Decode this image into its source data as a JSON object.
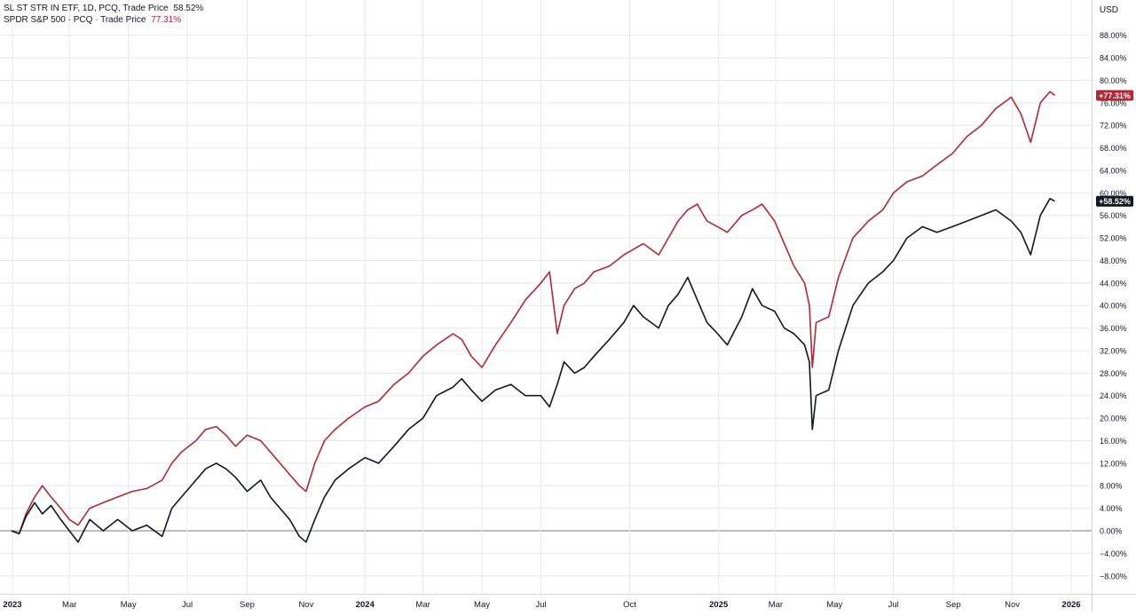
{
  "legend": {
    "series1_name": "SL ST STR IN ETF, 1D, PCQ, Trade Price",
    "series1_value": "58.52%",
    "series2_name": "SPDR S&P 500 · PCQ · Trade Price",
    "series2_value": "77.31%"
  },
  "currency_label": "USD",
  "colors": {
    "series1": "#131722",
    "series2": "#b22833",
    "grid": "#e6e8ec",
    "zero_line": "#9598a1",
    "axis_text": "#131722"
  },
  "chart_data": {
    "type": "line",
    "y_unit": "%",
    "ylim": [
      -10,
      92
    ],
    "grid": true,
    "y_ticks": [
      "88.00%",
      "84.00%",
      "80.00%",
      "76.00%",
      "72.00%",
      "68.00%",
      "64.00%",
      "60.00%",
      "56.00%",
      "52.00%",
      "48.00%",
      "44.00%",
      "40.00%",
      "36.00%",
      "32.00%",
      "28.00%",
      "24.00%",
      "20.00%",
      "16.00%",
      "12.00%",
      "8.00%",
      "4.00%",
      "0.00%",
      "−4.00%",
      "−8.00%"
    ],
    "y_tick_values": [
      88,
      84,
      80,
      76,
      72,
      68,
      64,
      60,
      56,
      52,
      48,
      44,
      40,
      36,
      32,
      28,
      24,
      20,
      16,
      12,
      8,
      4,
      0,
      -4,
      -8
    ],
    "x_ticks": [
      {
        "label": "2023",
        "date": "2023-01-01",
        "bold": true
      },
      {
        "label": "Mar",
        "date": "2023-03-01"
      },
      {
        "label": "May",
        "date": "2023-05-01"
      },
      {
        "label": "Jul",
        "date": "2023-07-01"
      },
      {
        "label": "Sep",
        "date": "2023-09-01"
      },
      {
        "label": "Nov",
        "date": "2023-11-01"
      },
      {
        "label": "2024",
        "date": "2024-01-01",
        "bold": true
      },
      {
        "label": "Mar",
        "date": "2024-03-01"
      },
      {
        "label": "May",
        "date": "2024-05-01"
      },
      {
        "label": "Jul",
        "date": "2024-07-01"
      },
      {
        "label": "Oct",
        "date": "2024-10-01"
      },
      {
        "label": "2025",
        "date": "2025-01-01",
        "bold": true
      },
      {
        "label": "Mar",
        "date": "2025-03-01"
      },
      {
        "label": "May",
        "date": "2025-05-01"
      },
      {
        "label": "Jul",
        "date": "2025-07-01"
      },
      {
        "label": "Sep",
        "date": "2025-09-01"
      },
      {
        "label": "Nov",
        "date": "2025-11-01"
      },
      {
        "label": "2026",
        "date": "2026-01-01",
        "bold": true
      }
    ],
    "series": [
      {
        "name": "SL ST STR IN ETF, 1D, PCQ, Trade Price",
        "last_label": "+58.52%",
        "points": [
          [
            "2022-12-31",
            0
          ],
          [
            "2023-01-08",
            -0.5
          ],
          [
            "2023-01-15",
            2.5
          ],
          [
            "2023-01-24",
            5
          ],
          [
            "2023-02-01",
            3
          ],
          [
            "2023-02-10",
            4.5
          ],
          [
            "2023-02-20",
            2
          ],
          [
            "2023-03-01",
            0
          ],
          [
            "2023-03-10",
            -2
          ],
          [
            "2023-03-22",
            2
          ],
          [
            "2023-04-05",
            0
          ],
          [
            "2023-04-20",
            2
          ],
          [
            "2023-05-05",
            0
          ],
          [
            "2023-05-20",
            1
          ],
          [
            "2023-06-05",
            -1
          ],
          [
            "2023-06-15",
            4
          ],
          [
            "2023-06-25",
            6
          ],
          [
            "2023-07-10",
            9
          ],
          [
            "2023-07-20",
            11
          ],
          [
            "2023-07-31",
            12
          ],
          [
            "2023-08-10",
            11
          ],
          [
            "2023-08-20",
            9.5
          ],
          [
            "2023-09-01",
            7
          ],
          [
            "2023-09-15",
            9
          ],
          [
            "2023-09-25",
            6
          ],
          [
            "2023-10-05",
            4
          ],
          [
            "2023-10-15",
            2
          ],
          [
            "2023-10-25",
            -1
          ],
          [
            "2023-11-01",
            -2
          ],
          [
            "2023-11-10",
            2
          ],
          [
            "2023-11-20",
            6
          ],
          [
            "2023-12-01",
            9
          ],
          [
            "2023-12-15",
            11
          ],
          [
            "2024-01-01",
            13
          ],
          [
            "2024-01-15",
            12
          ],
          [
            "2024-01-31",
            15
          ],
          [
            "2024-02-15",
            18
          ],
          [
            "2024-03-01",
            20
          ],
          [
            "2024-03-15",
            24
          ],
          [
            "2024-04-01",
            25.5
          ],
          [
            "2024-04-10",
            27
          ],
          [
            "2024-04-20",
            25
          ],
          [
            "2024-05-01",
            23
          ],
          [
            "2024-05-15",
            25
          ],
          [
            "2024-05-31",
            26
          ],
          [
            "2024-06-15",
            24
          ],
          [
            "2024-07-01",
            24
          ],
          [
            "2024-07-10",
            22
          ],
          [
            "2024-07-18",
            26
          ],
          [
            "2024-07-25",
            30
          ],
          [
            "2024-08-05",
            28
          ],
          [
            "2024-08-15",
            29
          ],
          [
            "2024-08-25",
            31
          ],
          [
            "2024-09-10",
            34
          ],
          [
            "2024-09-25",
            37
          ],
          [
            "2024-10-05",
            40
          ],
          [
            "2024-10-15",
            38
          ],
          [
            "2024-10-31",
            36
          ],
          [
            "2024-11-10",
            40
          ],
          [
            "2024-11-20",
            42
          ],
          [
            "2024-11-30",
            45
          ],
          [
            "2024-12-10",
            41
          ],
          [
            "2024-12-20",
            37
          ],
          [
            "2024-12-31",
            35
          ],
          [
            "2025-01-10",
            33
          ],
          [
            "2025-01-25",
            38
          ],
          [
            "2025-02-05",
            43
          ],
          [
            "2025-02-15",
            40
          ],
          [
            "2025-02-28",
            39
          ],
          [
            "2025-03-10",
            36
          ],
          [
            "2025-03-20",
            35
          ],
          [
            "2025-03-31",
            33
          ],
          [
            "2025-04-05",
            30
          ],
          [
            "2025-04-08",
            18
          ],
          [
            "2025-04-12",
            24
          ],
          [
            "2025-04-25",
            25
          ],
          [
            "2025-05-05",
            32
          ],
          [
            "2025-05-20",
            40
          ],
          [
            "2025-06-05",
            44
          ],
          [
            "2025-06-20",
            46
          ],
          [
            "2025-07-01",
            48
          ],
          [
            "2025-07-15",
            52
          ],
          [
            "2025-07-31",
            54
          ],
          [
            "2025-08-15",
            53
          ],
          [
            "2025-08-31",
            54
          ],
          [
            "2025-09-15",
            55
          ],
          [
            "2025-09-30",
            56
          ],
          [
            "2025-10-15",
            57
          ],
          [
            "2025-10-31",
            55
          ],
          [
            "2025-11-10",
            53
          ],
          [
            "2025-11-20",
            49
          ],
          [
            "2025-11-30",
            56
          ],
          [
            "2025-12-10",
            59
          ],
          [
            "2025-12-15",
            58.52
          ]
        ]
      },
      {
        "name": "SPDR S&P 500 · PCQ · Trade Price",
        "last_label": "+77.31%",
        "points": [
          [
            "2022-12-31",
            0
          ],
          [
            "2023-01-08",
            -0.5
          ],
          [
            "2023-01-15",
            3
          ],
          [
            "2023-01-24",
            6
          ],
          [
            "2023-02-01",
            8
          ],
          [
            "2023-02-10",
            6
          ],
          [
            "2023-02-20",
            4
          ],
          [
            "2023-03-01",
            2
          ],
          [
            "2023-03-10",
            1
          ],
          [
            "2023-03-22",
            4
          ],
          [
            "2023-04-05",
            5
          ],
          [
            "2023-04-20",
            6
          ],
          [
            "2023-05-05",
            7
          ],
          [
            "2023-05-20",
            7.5
          ],
          [
            "2023-06-05",
            9
          ],
          [
            "2023-06-15",
            12
          ],
          [
            "2023-06-25",
            14
          ],
          [
            "2023-07-10",
            16
          ],
          [
            "2023-07-20",
            18
          ],
          [
            "2023-07-31",
            18.5
          ],
          [
            "2023-08-10",
            17
          ],
          [
            "2023-08-20",
            15
          ],
          [
            "2023-09-01",
            17
          ],
          [
            "2023-09-15",
            16
          ],
          [
            "2023-09-25",
            14
          ],
          [
            "2023-10-05",
            12
          ],
          [
            "2023-10-15",
            10
          ],
          [
            "2023-10-25",
            8
          ],
          [
            "2023-11-01",
            7
          ],
          [
            "2023-11-10",
            12
          ],
          [
            "2023-11-20",
            16
          ],
          [
            "2023-12-01",
            18
          ],
          [
            "2023-12-15",
            20
          ],
          [
            "2024-01-01",
            22
          ],
          [
            "2024-01-15",
            23
          ],
          [
            "2024-01-31",
            26
          ],
          [
            "2024-02-15",
            28
          ],
          [
            "2024-03-01",
            31
          ],
          [
            "2024-03-15",
            33
          ],
          [
            "2024-04-01",
            35
          ],
          [
            "2024-04-10",
            34
          ],
          [
            "2024-04-20",
            31
          ],
          [
            "2024-05-01",
            29
          ],
          [
            "2024-05-15",
            33
          ],
          [
            "2024-05-31",
            37
          ],
          [
            "2024-06-15",
            41
          ],
          [
            "2024-07-01",
            44
          ],
          [
            "2024-07-10",
            46
          ],
          [
            "2024-07-18",
            35
          ],
          [
            "2024-07-25",
            40
          ],
          [
            "2024-08-05",
            43
          ],
          [
            "2024-08-15",
            44
          ],
          [
            "2024-08-25",
            46
          ],
          [
            "2024-09-10",
            47
          ],
          [
            "2024-09-25",
            49
          ],
          [
            "2024-10-05",
            50
          ],
          [
            "2024-10-15",
            51
          ],
          [
            "2024-10-31",
            49
          ],
          [
            "2024-11-10",
            52
          ],
          [
            "2024-11-20",
            55
          ],
          [
            "2024-11-30",
            57
          ],
          [
            "2024-12-10",
            58
          ],
          [
            "2024-12-20",
            55
          ],
          [
            "2024-12-31",
            54
          ],
          [
            "2025-01-10",
            53
          ],
          [
            "2025-01-25",
            56
          ],
          [
            "2025-02-05",
            57
          ],
          [
            "2025-02-15",
            58
          ],
          [
            "2025-02-28",
            55
          ],
          [
            "2025-03-10",
            51
          ],
          [
            "2025-03-20",
            47
          ],
          [
            "2025-03-31",
            44
          ],
          [
            "2025-04-05",
            40
          ],
          [
            "2025-04-08",
            29
          ],
          [
            "2025-04-12",
            37
          ],
          [
            "2025-04-25",
            38
          ],
          [
            "2025-05-05",
            45
          ],
          [
            "2025-05-20",
            52
          ],
          [
            "2025-06-05",
            55
          ],
          [
            "2025-06-20",
            57
          ],
          [
            "2025-07-01",
            60
          ],
          [
            "2025-07-15",
            62
          ],
          [
            "2025-07-31",
            63
          ],
          [
            "2025-08-15",
            65
          ],
          [
            "2025-08-31",
            67
          ],
          [
            "2025-09-15",
            70
          ],
          [
            "2025-09-30",
            72
          ],
          [
            "2025-10-15",
            75
          ],
          [
            "2025-10-31",
            77
          ],
          [
            "2025-11-10",
            74
          ],
          [
            "2025-11-20",
            69
          ],
          [
            "2025-11-30",
            76
          ],
          [
            "2025-12-10",
            78
          ],
          [
            "2025-12-15",
            77.31
          ]
        ]
      }
    ]
  }
}
